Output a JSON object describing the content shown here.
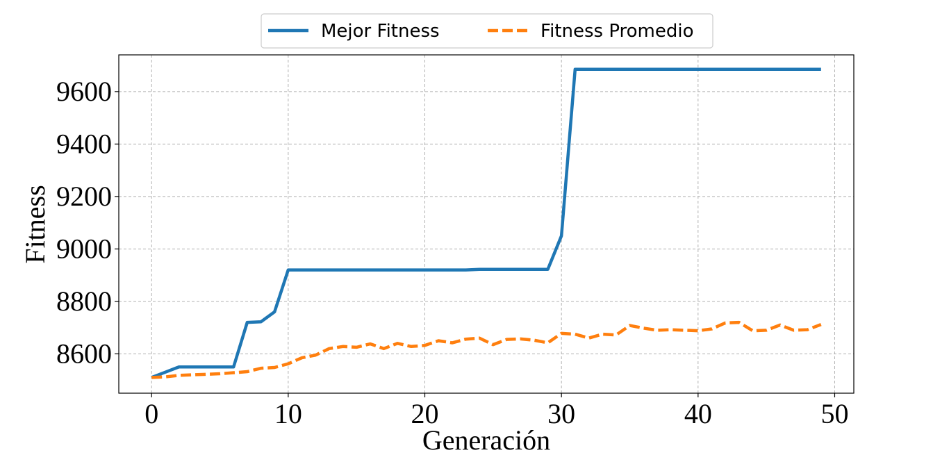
{
  "chart_data": {
    "type": "line",
    "xlabel": "Generación",
    "ylabel": "Fitness",
    "xlim": [
      -2.4,
      51.4
    ],
    "ylim": [
      8450,
      9740
    ],
    "xticks": [
      0,
      10,
      20,
      30,
      40,
      50
    ],
    "yticks": [
      8600,
      8800,
      9000,
      9200,
      9400,
      9600
    ],
    "grid": true,
    "legend_position": "top-center",
    "x": [
      0,
      1,
      2,
      3,
      4,
      5,
      6,
      7,
      8,
      9,
      10,
      11,
      12,
      13,
      14,
      15,
      16,
      17,
      18,
      19,
      20,
      21,
      22,
      23,
      24,
      25,
      26,
      27,
      28,
      29,
      30,
      31,
      32,
      33,
      34,
      35,
      36,
      37,
      38,
      39,
      40,
      41,
      42,
      43,
      44,
      45,
      46,
      47,
      48,
      49
    ],
    "series": [
      {
        "name": "Mejor Fitness",
        "color": "#1f77b4",
        "style": "solid",
        "values": [
          8510,
          8530,
          8550,
          8550,
          8550,
          8550,
          8550,
          8720,
          8722,
          8760,
          8920,
          8920,
          8920,
          8920,
          8920,
          8920,
          8920,
          8920,
          8920,
          8920,
          8920,
          8920,
          8920,
          8920,
          8922,
          8922,
          8922,
          8922,
          8922,
          8922,
          9050,
          9685,
          9685,
          9685,
          9685,
          9685,
          9685,
          9685,
          9685,
          9685,
          9685,
          9685,
          9685,
          9685,
          9685,
          9685,
          9685,
          9685,
          9685,
          9685
        ]
      },
      {
        "name": "Fitness Promedio",
        "color": "#ff7f0e",
        "style": "dashed",
        "values": [
          8510,
          8512,
          8518,
          8520,
          8522,
          8524,
          8528,
          8532,
          8545,
          8548,
          8562,
          8585,
          8595,
          8620,
          8628,
          8625,
          8638,
          8620,
          8640,
          8628,
          8632,
          8650,
          8642,
          8656,
          8660,
          8635,
          8655,
          8657,
          8652,
          8642,
          8678,
          8675,
          8660,
          8675,
          8672,
          8708,
          8698,
          8690,
          8692,
          8690,
          8688,
          8695,
          8718,
          8720,
          8688,
          8690,
          8710,
          8690,
          8692,
          8712
        ]
      }
    ]
  }
}
